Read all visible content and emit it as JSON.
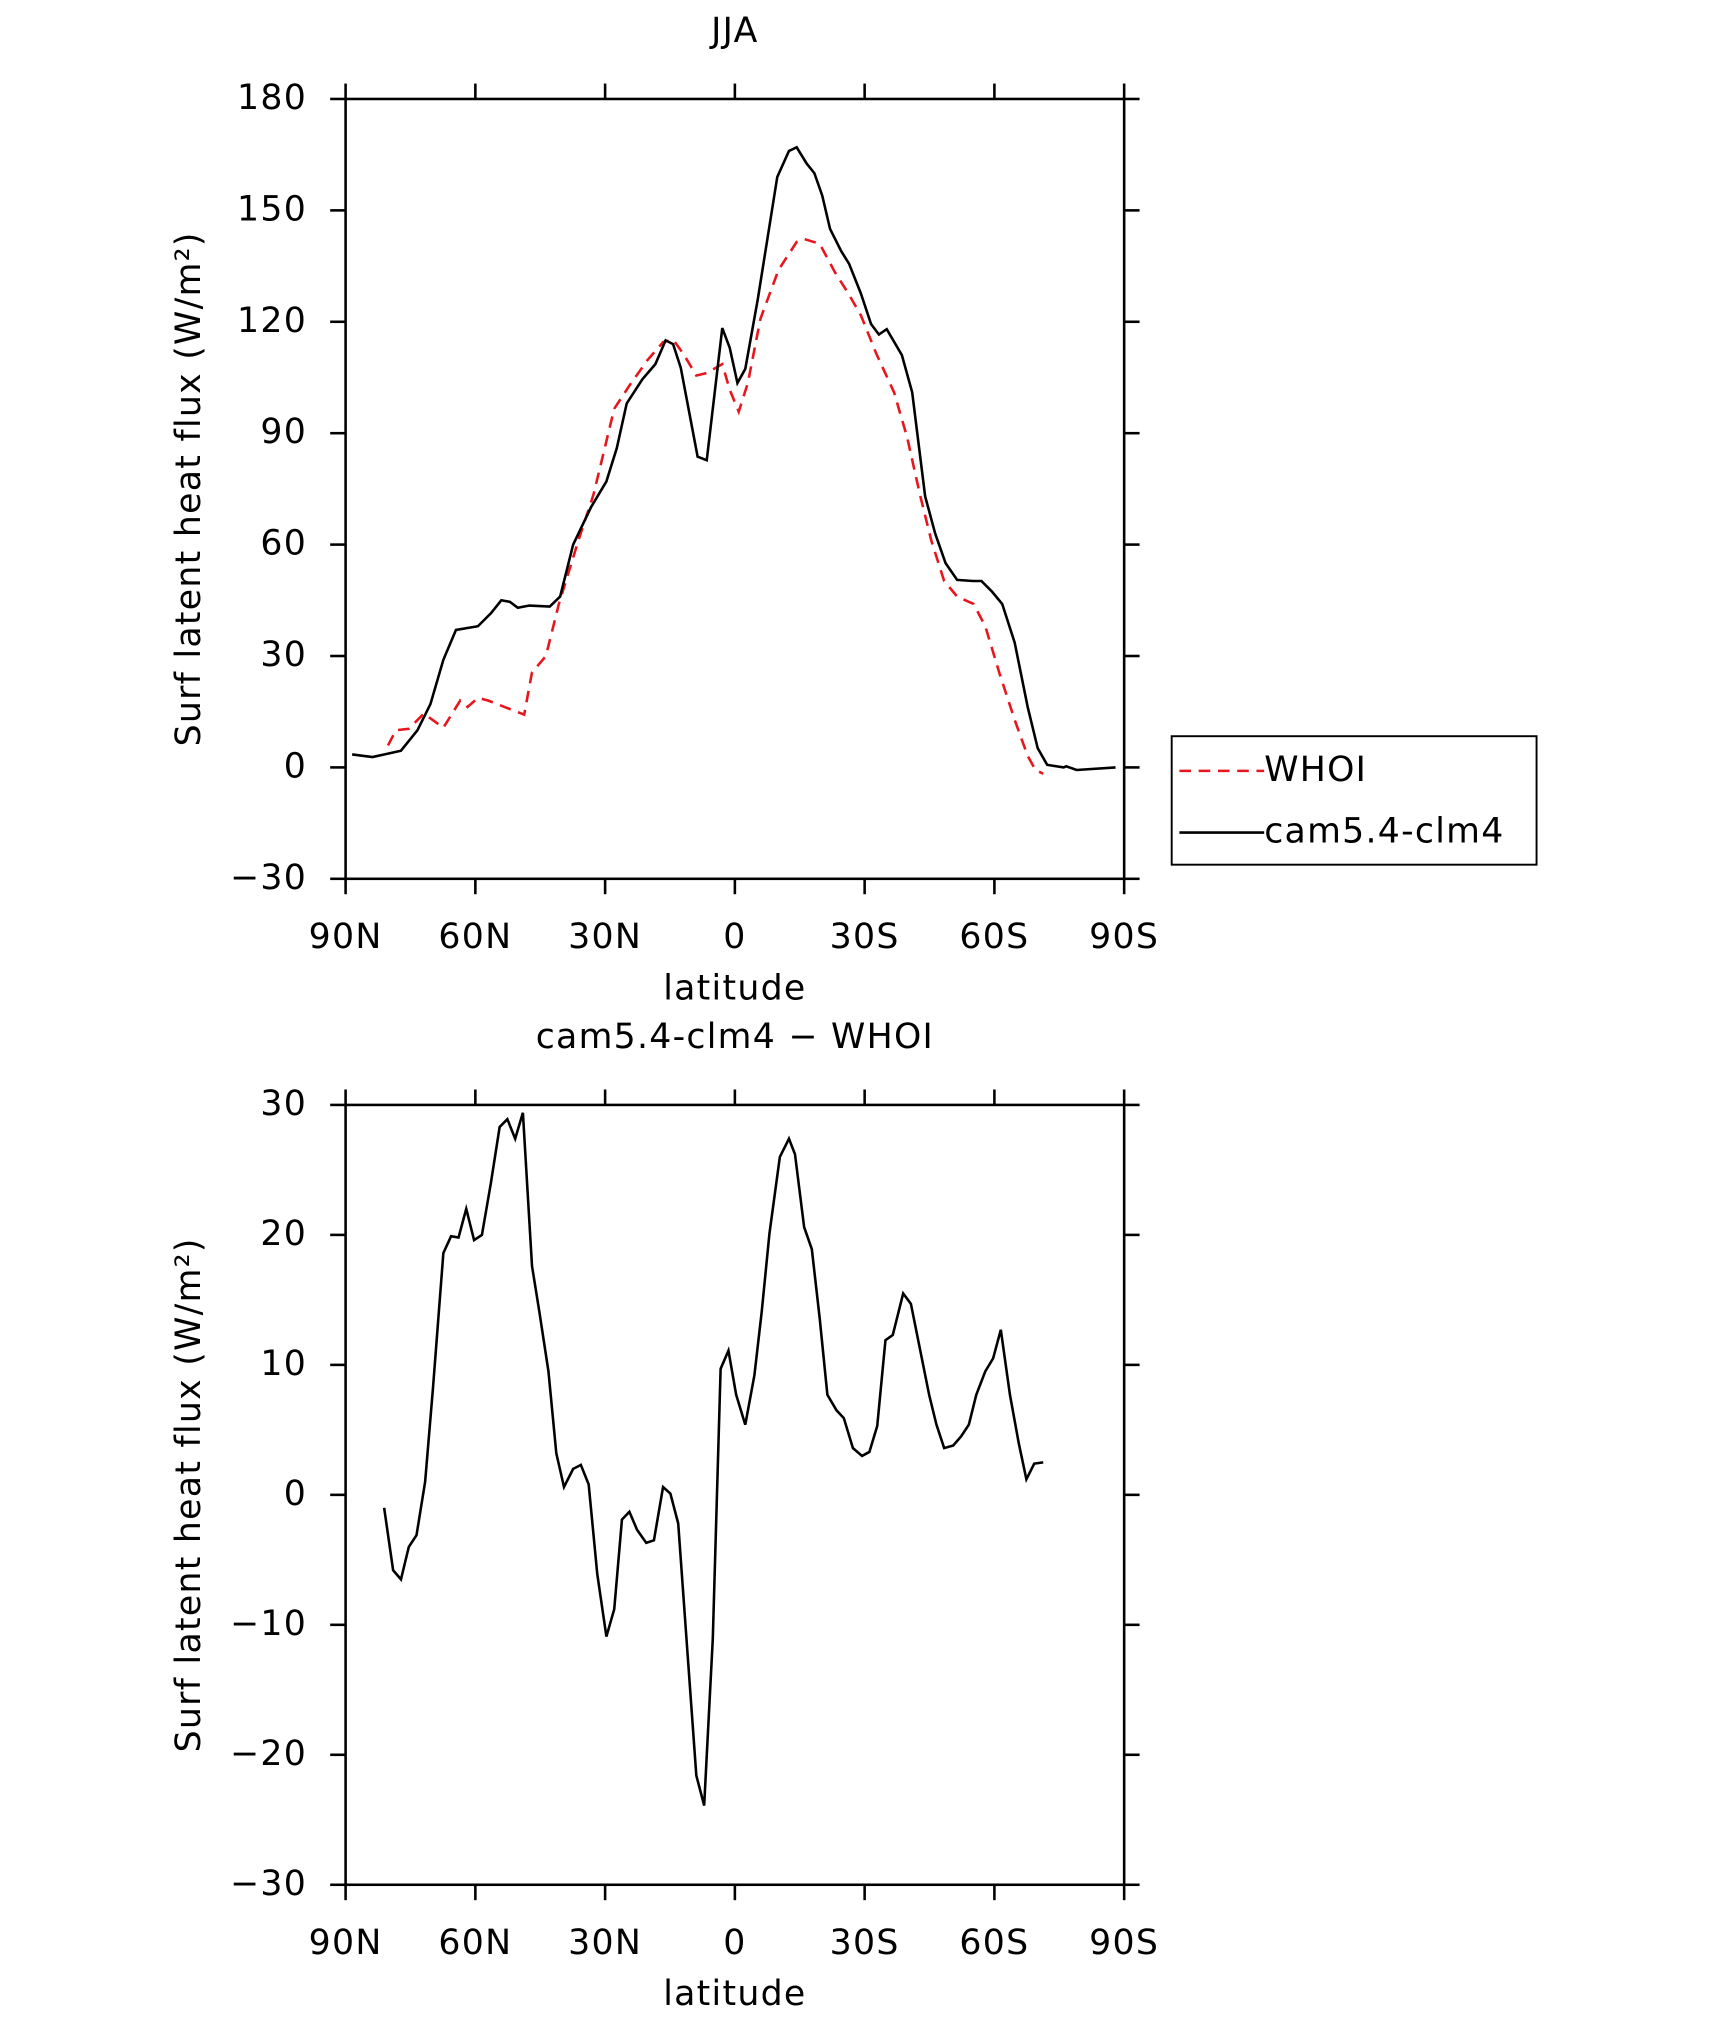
{
  "chart_data": [
    {
      "type": "line",
      "title": "JJA",
      "x_label": "latitude",
      "y_label": "Surf latent heat flux (W/m²)",
      "xlim": [
        90,
        -90
      ],
      "xticks": [
        {
          "value": 90,
          "label": "90N"
        },
        {
          "value": 60,
          "label": "60N"
        },
        {
          "value": 30,
          "label": "30N"
        },
        0,
        {
          "value": -30,
          "label": "30S"
        },
        {
          "value": -60,
          "label": "60S"
        },
        {
          "value": -90,
          "label": "90S"
        }
      ],
      "ylim": [
        -30,
        180
      ],
      "yticks": [
        {
          "value": -30,
          "label": "−30"
        },
        0,
        30,
        60,
        90,
        120,
        150,
        180
      ],
      "legend": "right",
      "series": [
        {
          "name": "WHOI",
          "color": "#e8161c",
          "linestyle": "dashed",
          "x": [
            80.2,
            78.4,
            75.4,
            71.9,
            67.4,
            63.5,
            61.8,
            59.4,
            57,
            48.7,
            46.9,
            43.7,
            40.7,
            36.2,
            32.7,
            27.9,
            24.4,
            20.2,
            16.6,
            14.3,
            11.9,
            8.9,
            6.5,
            2.9,
            1.2,
            -0.9,
            -3,
            -5.9,
            -10.1,
            -14.3,
            -16,
            -19.6,
            -23.2,
            -26.2,
            -29.1,
            -32.7,
            -36.8,
            -39.8,
            -42.8,
            -45.4,
            -48.4,
            -51.4,
            -55.2,
            -57.9,
            -61.2,
            -64.7,
            -67.7,
            -69.5,
            -71.3
          ],
          "values": [
            5.9,
            10,
            10.4,
            14.5,
            10.7,
            18,
            16.3,
            18.7,
            18,
            14.2,
            25.6,
            30,
            44,
            61,
            73.4,
            96.6,
            102.8,
            109.7,
            114.5,
            115.2,
            111.4,
            105.5,
            106.2,
            108.6,
            101.7,
            95.8,
            103.5,
            120.8,
            134,
            141.5,
            142.3,
            141,
            133.2,
            127.7,
            121.8,
            111.4,
            101,
            89,
            73.4,
            61.2,
            50.2,
            46,
            44,
            38,
            25.3,
            12.8,
            3.1,
            -0.7,
            -1.7
          ]
        },
        {
          "name": "cam5.4-clm4",
          "color": "#000000",
          "linestyle": "solid",
          "x": [
            88.5,
            83.8,
            77.2,
            73.4,
            70.4,
            67.4,
            64.5,
            59.4,
            56.4,
            54,
            52,
            50.2,
            47.5,
            42.8,
            40.4,
            37.4,
            33.3,
            29.7,
            27.3,
            25,
            21.4,
            18.4,
            16,
            14.3,
            12.5,
            8.6,
            6.5,
            2.9,
            1.2,
            -0.6,
            -2.4,
            -5.3,
            -9.8,
            -12.5,
            -14.3,
            -16.6,
            -18.4,
            -20.2,
            -22,
            -24.6,
            -26.4,
            -29.1,
            -31.5,
            -33.3,
            -35.1,
            -38.6,
            -41,
            -44,
            -46.3,
            -48.7,
            -51.4,
            -55,
            -57,
            -59.4,
            -61.8,
            -64.7,
            -67.7,
            -70,
            -72.2,
            -76,
            -76.6,
            -79,
            -88
          ],
          "values": [
            3.5,
            2.8,
            4.5,
            10,
            17,
            29,
            37,
            38,
            41.5,
            45,
            44.6,
            43,
            43.6,
            43.3,
            46,
            60,
            70,
            77,
            86,
            98,
            104.5,
            108.6,
            115,
            114,
            107.6,
            83.7,
            82.7,
            118.3,
            113,
            103.5,
            107.3,
            126,
            159,
            166,
            167,
            162.6,
            160,
            154,
            145,
            139,
            135.6,
            127.7,
            119.4,
            116.6,
            118,
            111,
            101,
            73,
            63,
            55,
            50.5,
            50.2,
            50.2,
            47.4,
            44,
            33.6,
            16.3,
            5.2,
            0.7,
            0,
            0.3,
            -0.7,
            0
          ]
        }
      ]
    },
    {
      "type": "line",
      "title": "cam5.4-clm4 − WHOI",
      "x_label": "latitude",
      "y_label": "Surf latent heat flux (W/m²)",
      "xlim": [
        90,
        -90
      ],
      "xticks": [
        {
          "value": 90,
          "label": "90N"
        },
        {
          "value": 60,
          "label": "60N"
        },
        {
          "value": 30,
          "label": "30N"
        },
        0,
        {
          "value": -30,
          "label": "30S"
        },
        {
          "value": -60,
          "label": "60S"
        },
        {
          "value": -90,
          "label": "90S"
        }
      ],
      "ylim": [
        -30,
        30
      ],
      "yticks": [
        {
          "value": -30,
          "label": "−30"
        },
        {
          "value": -20,
          "label": "−20"
        },
        {
          "value": -10,
          "label": "−10"
        },
        0,
        10,
        20,
        30
      ],
      "series": [
        {
          "color": "#000000",
          "linestyle": "solid",
          "x": [
            81.1,
            79,
            77.2,
            75.4,
            73.6,
            71.6,
            69.8,
            67.4,
            65.6,
            63.9,
            62.1,
            60.3,
            58.5,
            56.4,
            54.4,
            52.6,
            50.8,
            49,
            46.9,
            45.2,
            43.1,
            41.3,
            39.5,
            37.4,
            35.6,
            33.8,
            31.8,
            29.7,
            27.9,
            26.1,
            24.4,
            22.6,
            20.5,
            18.7,
            16.6,
            14.9,
            13.1,
            11,
            8.9,
            7.1,
            5.1,
            3.3,
            1.5,
            -0.3,
            -2.4,
            -4.5,
            -6.2,
            -8,
            -10.4,
            -12.5,
            -13.9,
            -16,
            -17.8,
            -19.6,
            -21.4,
            -23.5,
            -25.2,
            -27.3,
            -29.4,
            -31.1,
            -32.9,
            -34.8,
            -36.5,
            -38.9,
            -40.7,
            -42.8,
            -44.9,
            -46.6,
            -48.4,
            -50.5,
            -52.3,
            -54.1,
            -55.8,
            -57.9,
            -59.7,
            -61.5,
            -63.6,
            -65.6,
            -67.4,
            -69.2,
            -71.3
          ],
          "values": [
            -1,
            -5.8,
            -6.5,
            -4,
            -3.1,
            1,
            8.2,
            18.6,
            19.9,
            19.8,
            22,
            19.6,
            20,
            24,
            28.3,
            28.9,
            27.4,
            29.4,
            17.6,
            14.1,
            9.5,
            3.2,
            0.6,
            2,
            2.3,
            0.8,
            -6.1,
            -10.9,
            -8.8,
            -1.9,
            -1.3,
            -2.7,
            -3.7,
            -3.5,
            0.6,
            0.1,
            -2.2,
            -12,
            -21.6,
            -23.9,
            -11.1,
            9.7,
            11.1,
            7.7,
            5.4,
            9.2,
            14.1,
            20.1,
            26,
            27.4,
            26.2,
            20.6,
            18.9,
            13.6,
            7.7,
            6.5,
            5.9,
            3.6,
            3,
            3.3,
            5.3,
            11.9,
            12.3,
            15.5,
            14.7,
            11.2,
            7.7,
            5.4,
            3.6,
            3.8,
            4.5,
            5.4,
            7.7,
            9.5,
            10.5,
            12.7,
            7.7,
            4,
            1.2,
            2.4,
            2.5
          ]
        }
      ]
    }
  ]
}
